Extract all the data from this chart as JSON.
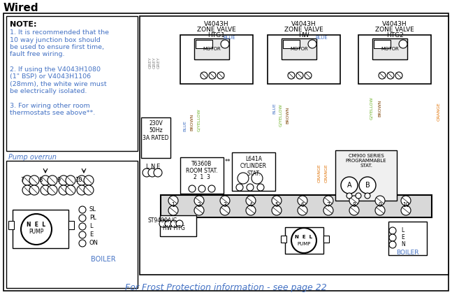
{
  "title": "Wired",
  "background_color": "#ffffff",
  "border_color": "#000000",
  "note_title": "NOTE:",
  "note_lines": [
    "1. It is recommended that the",
    "10 way junction box should",
    "be used to ensure first time,",
    "fault free wiring.",
    "",
    "2. If using the V4043H1080",
    "(1\" BSP) or V4043H1106",
    "(28mm), the white wire must",
    "be electrically isolated.",
    "",
    "3. For wiring other room",
    "thermostats see above**."
  ],
  "pump_overrun_label": "Pump overrun",
  "footer_text": "For Frost Protection information - see page 22",
  "zone_valve_labels": [
    "V4043H\nZONE VALVE\nHTG1",
    "V4043H\nZONE VALVE\nHW",
    "V4043H\nZONE VALVE\nHTG2"
  ],
  "wire_colors": {
    "grey": "#808080",
    "blue": "#4472c4",
    "brown": "#7b3f00",
    "green_yellow": "#6aaf23",
    "orange": "#e07000",
    "black": "#000000"
  },
  "power_label": "230V\n50Hz\n3A RATED",
  "room_stat_label": "T6360B\nROOM STAT.",
  "room_stat_terminals": "2  1  3",
  "cylinder_stat_label": "L641A\nCYLINDER\nSTAT.",
  "prog_label": "CM900 SERIES\nPROGRAMMABLE\nSTAT.",
  "st9400_label": "ST9400A/C",
  "hw_htg_label": "HW HTG",
  "boiler_label": "BOILER",
  "pump_label": "PUMP",
  "motor_label": "MOTOR",
  "junction_terminals": [
    "1",
    "2",
    "3",
    "4",
    "5",
    "6",
    "7",
    "8",
    "9",
    "10"
  ],
  "pump_boiler_terminals": [
    "SL",
    "PL",
    "L",
    "E",
    "ON"
  ],
  "footer_color": "#4472c4",
  "accent_color": "#4472c4",
  "title_fontsize": 11
}
